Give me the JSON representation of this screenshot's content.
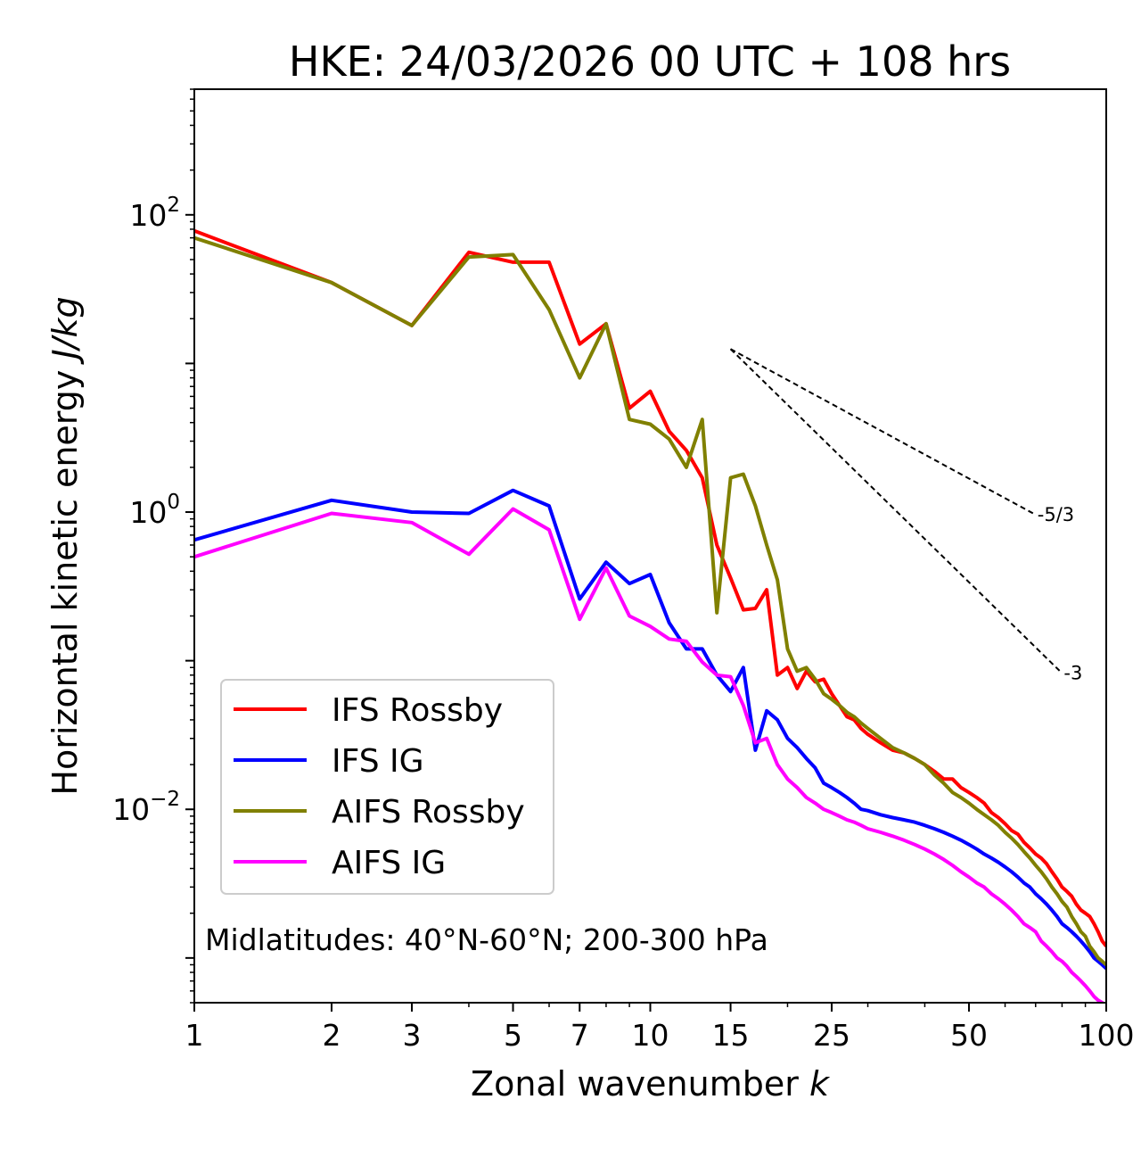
{
  "chart_data": {
    "type": "line",
    "title": "HKE: 24/03/2026 00 UTC + 108 hrs",
    "xlabel": "Zonal wavenumber",
    "xlabel_symbol": "k",
    "ylabel": "Horizontal kinetic energy",
    "ylabel_units": "J/kg",
    "xscale": "log",
    "yscale": "log",
    "xlim": [
      1,
      100
    ],
    "ylim": [
      0.0005,
      700
    ],
    "xticks": [
      {
        "value": 1,
        "label": "1"
      },
      {
        "value": 2,
        "label": "2"
      },
      {
        "value": 3,
        "label": "3"
      },
      {
        "value": 5,
        "label": "5"
      },
      {
        "value": 7,
        "label": "7"
      },
      {
        "value": 10,
        "label": "10"
      },
      {
        "value": 15,
        "label": "15"
      },
      {
        "value": 25,
        "label": "25"
      },
      {
        "value": 50,
        "label": "50"
      },
      {
        "value": 100,
        "label": "100"
      }
    ],
    "yticks": [
      {
        "value": 100,
        "base": "10",
        "exp": "2"
      },
      {
        "value": 1,
        "base": "10",
        "exp": "0"
      },
      {
        "value": 0.01,
        "base": "10",
        "exp": "−2"
      }
    ],
    "legend_position": "lower-left",
    "annotation": "Midlatitudes: 40°N-60°N; 200-300 hPa",
    "reference_slopes": [
      {
        "label": "-5/3",
        "k_start": 15,
        "k_end": 70,
        "y_start": 12.5
      },
      {
        "label": "-3",
        "k_start": 15,
        "k_end": 80,
        "y_start": 12.5
      }
    ],
    "series": [
      {
        "name": "IFS Rossby",
        "color": "#ff0000",
        "x": [
          1,
          2,
          3,
          4,
          5,
          6,
          7,
          8,
          9,
          10,
          11,
          12,
          13,
          14,
          15,
          16,
          17,
          18,
          19,
          20,
          21,
          22,
          23,
          24,
          25,
          26,
          27,
          28,
          29,
          30,
          32,
          34,
          36,
          38,
          40,
          42,
          44,
          46,
          48,
          50,
          52,
          54,
          56,
          58,
          60,
          62,
          64,
          66,
          68,
          70,
          72,
          74,
          76,
          78,
          80,
          82,
          84,
          86,
          88,
          90,
          92,
          94,
          96,
          98,
          100
        ],
        "y": [
          78,
          35,
          18,
          56,
          48,
          48,
          13.5,
          18.5,
          5,
          6.5,
          3.5,
          2.6,
          1.7,
          0.6,
          0.36,
          0.22,
          0.225,
          0.3,
          0.08,
          0.09,
          0.065,
          0.085,
          0.072,
          0.075,
          0.06,
          0.05,
          0.042,
          0.04,
          0.035,
          0.032,
          0.028,
          0.025,
          0.024,
          0.022,
          0.02,
          0.018,
          0.016,
          0.016,
          0.014,
          0.013,
          0.012,
          0.011,
          0.0095,
          0.0088,
          0.008,
          0.0072,
          0.0068,
          0.006,
          0.0055,
          0.005,
          0.0047,
          0.0043,
          0.0038,
          0.0034,
          0.003,
          0.0028,
          0.0026,
          0.0023,
          0.0021,
          0.002,
          0.0019,
          0.0017,
          0.0015,
          0.0013,
          0.0012
        ]
      },
      {
        "name": "IFS IG",
        "color": "#0000ff",
        "x": [
          1,
          2,
          3,
          4,
          5,
          6,
          7,
          8,
          9,
          10,
          11,
          12,
          13,
          14,
          15,
          16,
          17,
          18,
          19,
          20,
          21,
          22,
          23,
          24,
          25,
          26,
          27,
          28,
          29,
          30,
          32,
          34,
          36,
          38,
          40,
          42,
          44,
          46,
          48,
          50,
          52,
          54,
          56,
          58,
          60,
          62,
          64,
          66,
          68,
          70,
          72,
          74,
          76,
          78,
          80,
          82,
          84,
          86,
          88,
          90,
          92,
          94,
          96,
          98,
          100
        ],
        "y": [
          0.65,
          1.2,
          1.0,
          0.98,
          1.4,
          1.1,
          0.26,
          0.46,
          0.33,
          0.38,
          0.18,
          0.12,
          0.12,
          0.08,
          0.062,
          0.09,
          0.025,
          0.046,
          0.04,
          0.03,
          0.026,
          0.022,
          0.019,
          0.015,
          0.014,
          0.013,
          0.012,
          0.011,
          0.01,
          0.0098,
          0.0092,
          0.0088,
          0.0085,
          0.0082,
          0.0078,
          0.0074,
          0.007,
          0.0066,
          0.0062,
          0.0058,
          0.0054,
          0.005,
          0.0047,
          0.0044,
          0.0041,
          0.0038,
          0.0035,
          0.0032,
          0.003,
          0.0027,
          0.0025,
          0.0023,
          0.0021,
          0.0019,
          0.0017,
          0.0016,
          0.0015,
          0.0014,
          0.0013,
          0.0012,
          0.0011,
          0.001,
          0.00095,
          0.0009,
          0.00085
        ]
      },
      {
        "name": "AIFS Rossby",
        "color": "#808000",
        "x": [
          1,
          2,
          3,
          4,
          5,
          6,
          7,
          8,
          9,
          10,
          11,
          12,
          13,
          14,
          15,
          16,
          17,
          18,
          19,
          20,
          21,
          22,
          23,
          24,
          25,
          26,
          27,
          28,
          29,
          30,
          32,
          34,
          36,
          38,
          40,
          42,
          44,
          46,
          48,
          50,
          52,
          54,
          56,
          58,
          60,
          62,
          64,
          66,
          68,
          70,
          72,
          74,
          76,
          78,
          80,
          82,
          84,
          86,
          88,
          90,
          92,
          94,
          96,
          98,
          100
        ],
        "y": [
          70,
          35,
          18,
          52,
          54,
          23,
          8,
          18.5,
          4.2,
          3.9,
          3.1,
          2.0,
          4.2,
          0.21,
          1.7,
          1.8,
          1.1,
          0.6,
          0.35,
          0.12,
          0.085,
          0.09,
          0.075,
          0.06,
          0.055,
          0.05,
          0.045,
          0.042,
          0.038,
          0.035,
          0.03,
          0.026,
          0.024,
          0.022,
          0.02,
          0.017,
          0.015,
          0.013,
          0.012,
          0.011,
          0.01,
          0.0092,
          0.0085,
          0.0078,
          0.007,
          0.0064,
          0.0058,
          0.0052,
          0.0047,
          0.0042,
          0.0038,
          0.0034,
          0.003,
          0.0027,
          0.0024,
          0.0022,
          0.0019,
          0.0017,
          0.0015,
          0.0014,
          0.0012,
          0.0011,
          0.001,
          0.00095,
          0.0009
        ]
      },
      {
        "name": "AIFS IG",
        "color": "#ff00ff",
        "x": [
          1,
          2,
          3,
          4,
          5,
          6,
          7,
          8,
          9,
          10,
          11,
          12,
          13,
          14,
          15,
          16,
          17,
          18,
          19,
          20,
          21,
          22,
          23,
          24,
          25,
          26,
          27,
          28,
          29,
          30,
          32,
          34,
          36,
          38,
          40,
          42,
          44,
          46,
          48,
          50,
          52,
          54,
          56,
          58,
          60,
          62,
          64,
          66,
          68,
          70,
          72,
          74,
          76,
          78,
          80,
          82,
          84,
          86,
          88,
          90,
          92,
          94,
          96,
          98,
          100
        ],
        "y": [
          0.5,
          0.98,
          0.85,
          0.52,
          1.05,
          0.76,
          0.19,
          0.42,
          0.2,
          0.17,
          0.14,
          0.135,
          0.098,
          0.08,
          0.078,
          0.05,
          0.028,
          0.03,
          0.02,
          0.016,
          0.014,
          0.012,
          0.011,
          0.01,
          0.0095,
          0.009,
          0.0085,
          0.0082,
          0.0078,
          0.0074,
          0.007,
          0.0066,
          0.0062,
          0.0058,
          0.0054,
          0.005,
          0.0046,
          0.0042,
          0.0038,
          0.0035,
          0.0032,
          0.003,
          0.0027,
          0.0025,
          0.0023,
          0.0021,
          0.0019,
          0.0017,
          0.0016,
          0.0015,
          0.0013,
          0.0012,
          0.0011,
          0.001,
          0.00095,
          0.00088,
          0.0008,
          0.00075,
          0.0007,
          0.00065,
          0.0006,
          0.00055,
          0.00052,
          0.0005,
          0.00048
        ]
      }
    ]
  }
}
